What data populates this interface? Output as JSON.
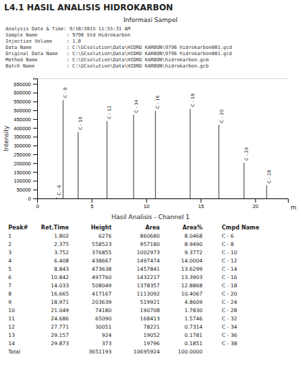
{
  "chart_data": {
    "type": "stem",
    "title": "L4.1  HASIL ANALISIS HIDROKARBON",
    "ylabel": "Intensity",
    "xlabel": "m",
    "x": [
      1.802,
      2.375,
      3.752,
      6.408,
      8.843,
      10.842,
      14.033,
      16.665,
      18.971,
      21.049
    ],
    "values": [
      6276,
      558523,
      376855,
      438667,
      473638,
      497760,
      508049,
      417167,
      203639,
      74180
    ],
    "annotations": [
      "C - 6",
      "C - 8",
      "C - 10",
      "C - 12",
      "C - 14",
      "C - 16",
      "C - 18",
      "C - 20",
      "C - 24",
      "C - 28"
    ],
    "color": "#555555",
    "xlim": [
      0,
      23
    ],
    "xticks": [
      0,
      5,
      10,
      15,
      20
    ],
    "ylim": [
      0,
      680000
    ],
    "yticks": [
      0,
      50000,
      100000,
      150000,
      200000,
      250000,
      300000,
      350000,
      400000,
      450000,
      500000,
      550000,
      600000,
      650000
    ],
    "grid": false,
    "info": {
      "title": "Informasi Sampel",
      "lines": [
        "Analysis Date & Time: 9/10/2015 11:55:31 AM",
        "Sample Name          : 9796 Std Hidrokarbon",
        "Injection Volume     : 1.0",
        "Data Name            : C:\\GCsolution\\Data\\HIDRO KARBON\\9796 hidrokarbon001.gcd",
        "Original Data Name   : C:\\GCsolution\\Data\\HIDRO KARBON\\9796 hidrokarbon001.gcd",
        "Method Name          : C:\\GCsolution\\Data\\HIDRO KARBON\\hidrokarbon.gcm",
        "Batch Name           : C:\\GCsolution\\Data\\HIDRO KARBON\\hidrokarbon.gcb"
      ]
    },
    "table": {
      "title": "Hasil Analisis - Channel 1",
      "headers": [
        "Peak#",
        "Ret.Time",
        "Height",
        "Area",
        "Area%",
        "Cmpd Name"
      ],
      "rows": [
        [
          "1",
          "1.802",
          "6276",
          "860680",
          "8.0468",
          "C - 6"
        ],
        [
          "2",
          "2.375",
          "558523",
          "957180",
          "8.9490",
          "C - 8"
        ],
        [
          "3",
          "3.752",
          "376855",
          "1002973",
          "9.3772",
          "C - 10"
        ],
        [
          "4",
          "6.408",
          "438667",
          "1497474",
          "14.0004",
          "C - 12"
        ],
        [
          "5",
          "8.843",
          "473638",
          "1457841",
          "13.6299",
          "C - 14"
        ],
        [
          "6",
          "10.842",
          "497760",
          "1432217",
          "13.3903",
          "C - 16"
        ],
        [
          "7",
          "14.033",
          "508049",
          "1378357",
          "12.8868",
          "C - 18"
        ],
        [
          "8",
          "16.665",
          "417167",
          "1113092",
          "10.4067",
          "C - 20"
        ],
        [
          "9",
          "18.971",
          "203639",
          "519921",
          "4.8609",
          "C - 24"
        ],
        [
          "10",
          "21.049",
          "74180",
          "190708",
          "1.7830",
          "C - 28"
        ],
        [
          "11",
          "24.686",
          "65090",
          "168413",
          "1.5746",
          "C - 32"
        ],
        [
          "12",
          "27.771",
          "30051",
          "78221",
          "0.7314",
          "C - 34"
        ],
        [
          "13",
          "29.157",
          "924",
          "19052",
          "0.1781",
          "C - 36"
        ],
        [
          "14",
          "29.873",
          "373",
          "19796",
          "0.1851",
          "C - 38"
        ]
      ],
      "total": [
        "Total",
        null,
        "3651193",
        "10695924",
        "100.0000",
        null
      ]
    }
  }
}
